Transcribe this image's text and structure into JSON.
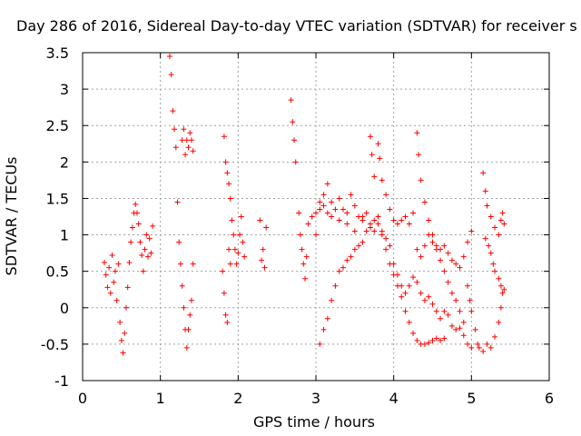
{
  "chart_data": {
    "type": "scatter",
    "title": "Day 286 of 2016, Sidereal Day-to-day VTEC variation (SDTVAR) for receiver s",
    "xlabel": "GPS time / hours",
    "ylabel": "SDTVAR / TECUs",
    "xlim": [
      0,
      6
    ],
    "ylim": [
      -1,
      3.5
    ],
    "xticks": [
      "0",
      "1",
      "2",
      "3",
      "4",
      "5",
      "6"
    ],
    "yticks": [
      "-1",
      "-0.5",
      "0",
      "0.5",
      "1",
      "1.5",
      "2",
      "2.5",
      "3",
      "3.5"
    ],
    "grid": true,
    "marker": "+",
    "color": "#ff0000",
    "series": [
      {
        "values": [
          [
            0.28,
            0.62
          ],
          [
            0.3,
            0.45
          ],
          [
            0.32,
            0.28
          ],
          [
            0.34,
            0.55
          ],
          [
            0.36,
            0.2
          ],
          [
            0.38,
            0.72
          ],
          [
            0.4,
            0.35
          ],
          [
            0.42,
            0.5
          ],
          [
            0.44,
            0.1
          ],
          [
            0.46,
            0.6
          ],
          [
            0.48,
            -0.2
          ],
          [
            0.5,
            -0.45
          ],
          [
            0.52,
            -0.62
          ],
          [
            0.54,
            -0.35
          ],
          [
            0.56,
            0.0
          ],
          [
            0.58,
            0.28
          ],
          [
            0.6,
            0.62
          ],
          [
            0.62,
            0.9
          ],
          [
            0.64,
            1.1
          ],
          [
            0.66,
            1.3
          ],
          [
            0.68,
            1.42
          ],
          [
            0.7,
            1.3
          ],
          [
            0.72,
            1.15
          ],
          [
            0.74,
            0.9
          ],
          [
            0.76,
            0.72
          ],
          [
            0.78,
            0.5
          ],
          [
            0.8,
            0.8
          ],
          [
            0.82,
            1.0
          ],
          [
            0.84,
            0.7
          ],
          [
            0.86,
            0.95
          ],
          [
            0.88,
            0.75
          ],
          [
            0.9,
            1.12
          ],
          [
            1.12,
            3.45
          ],
          [
            1.14,
            3.2
          ],
          [
            1.16,
            2.7
          ],
          [
            1.18,
            2.45
          ],
          [
            1.2,
            2.2
          ],
          [
            1.22,
            1.45
          ],
          [
            1.24,
            0.9
          ],
          [
            1.26,
            0.6
          ],
          [
            1.28,
            0.3
          ],
          [
            1.3,
            0.0
          ],
          [
            1.32,
            -0.3
          ],
          [
            1.34,
            -0.55
          ],
          [
            1.36,
            -0.3
          ],
          [
            1.38,
            -0.1
          ],
          [
            1.4,
            0.1
          ],
          [
            1.42,
            0.6
          ],
          [
            1.28,
            2.3
          ],
          [
            1.3,
            2.45
          ],
          [
            1.32,
            2.1
          ],
          [
            1.34,
            2.3
          ],
          [
            1.36,
            2.2
          ],
          [
            1.38,
            2.4
          ],
          [
            1.4,
            2.3
          ],
          [
            1.42,
            2.15
          ],
          [
            1.82,
            2.35
          ],
          [
            1.84,
            2.0
          ],
          [
            1.86,
            1.85
          ],
          [
            1.88,
            1.7
          ],
          [
            1.9,
            1.5
          ],
          [
            1.92,
            1.2
          ],
          [
            1.94,
            1.0
          ],
          [
            1.96,
            0.8
          ],
          [
            1.98,
            0.6
          ],
          [
            2.0,
            0.75
          ],
          [
            2.02,
            1.0
          ],
          [
            2.04,
            1.25
          ],
          [
            2.06,
            0.9
          ],
          [
            2.08,
            0.7
          ],
          [
            1.8,
            0.5
          ],
          [
            1.82,
            0.2
          ],
          [
            1.84,
            -0.1
          ],
          [
            1.86,
            -0.2
          ],
          [
            1.88,
            0.8
          ],
          [
            1.9,
            0.6
          ],
          [
            2.28,
            1.2
          ],
          [
            2.3,
            0.65
          ],
          [
            2.32,
            0.8
          ],
          [
            2.34,
            0.55
          ],
          [
            2.36,
            1.1
          ],
          [
            2.68,
            2.85
          ],
          [
            2.7,
            2.55
          ],
          [
            2.72,
            2.3
          ],
          [
            2.74,
            2.0
          ],
          [
            2.78,
            1.3
          ],
          [
            2.8,
            1.0
          ],
          [
            2.82,
            0.8
          ],
          [
            2.84,
            0.6
          ],
          [
            2.86,
            0.4
          ],
          [
            2.88,
            0.7
          ],
          [
            2.9,
            1.15
          ],
          [
            2.95,
            1.25
          ],
          [
            3.0,
            1.0
          ],
          [
            3.05,
            1.45
          ],
          [
            3.1,
            1.55
          ],
          [
            3.15,
            1.7
          ],
          [
            3.2,
            1.45
          ],
          [
            3.25,
            1.35
          ],
          [
            3.3,
            1.5
          ],
          [
            3.35,
            1.35
          ],
          [
            3.4,
            1.3
          ],
          [
            3.45,
            1.55
          ],
          [
            3.5,
            1.4
          ],
          [
            3.55,
            1.25
          ],
          [
            3.6,
            1.2
          ],
          [
            3.65,
            1.3
          ],
          [
            3.7,
            1.1
          ],
          [
            3.75,
            1.05
          ],
          [
            3.8,
            1.15
          ],
          [
            3.85,
            1.0
          ],
          [
            3.9,
            0.95
          ],
          [
            3.95,
            0.85
          ],
          [
            4.0,
            0.6
          ],
          [
            4.05,
            0.45
          ],
          [
            4.1,
            0.3
          ],
          [
            4.15,
            0.2
          ],
          [
            4.2,
            0.3
          ],
          [
            4.25,
            0.42
          ],
          [
            4.3,
            0.35
          ],
          [
            4.35,
            0.2
          ],
          [
            4.4,
            0.1
          ],
          [
            4.45,
            0.15
          ],
          [
            4.5,
            0.05
          ],
          [
            4.55,
            -0.05
          ],
          [
            4.6,
            -0.15
          ],
          [
            4.65,
            -0.05
          ],
          [
            4.7,
            -0.1
          ],
          [
            4.75,
            -0.25
          ],
          [
            4.8,
            -0.3
          ],
          [
            4.85,
            -0.28
          ],
          [
            4.9,
            -0.38
          ],
          [
            4.95,
            -0.5
          ],
          [
            5.0,
            -0.55
          ],
          [
            3.05,
            -0.5
          ],
          [
            3.1,
            -0.3
          ],
          [
            3.15,
            -0.15
          ],
          [
            3.2,
            0.1
          ],
          [
            3.25,
            0.3
          ],
          [
            3.3,
            0.5
          ],
          [
            3.35,
            0.55
          ],
          [
            3.4,
            0.65
          ],
          [
            3.45,
            0.7
          ],
          [
            3.5,
            0.8
          ],
          [
            3.55,
            0.85
          ],
          [
            3.6,
            0.9
          ],
          [
            3.65,
            1.05
          ],
          [
            3.7,
            1.15
          ],
          [
            3.75,
            1.2
          ],
          [
            3.8,
            1.25
          ],
          [
            3.85,
            1.05
          ],
          [
            3.9,
            0.8
          ],
          [
            3.95,
            0.6
          ],
          [
            4.0,
            0.45
          ],
          [
            4.05,
            0.3
          ],
          [
            4.1,
            0.15
          ],
          [
            4.15,
            -0.05
          ],
          [
            4.2,
            -0.2
          ],
          [
            4.25,
            -0.35
          ],
          [
            4.3,
            -0.45
          ],
          [
            4.35,
            -0.5
          ],
          [
            4.4,
            -0.5
          ],
          [
            4.45,
            -0.48
          ],
          [
            4.5,
            -0.45
          ],
          [
            4.55,
            -0.42
          ],
          [
            4.6,
            -0.45
          ],
          [
            4.65,
            -0.42
          ],
          [
            3.0,
            1.3
          ],
          [
            3.05,
            1.35
          ],
          [
            3.1,
            1.4
          ],
          [
            3.15,
            1.3
          ],
          [
            3.2,
            1.25
          ],
          [
            3.3,
            1.2
          ],
          [
            3.4,
            1.15
          ],
          [
            3.5,
            1.05
          ],
          [
            3.6,
            1.25
          ],
          [
            3.7,
            2.35
          ],
          [
            3.72,
            2.1
          ],
          [
            3.75,
            1.8
          ],
          [
            3.8,
            2.25
          ],
          [
            3.82,
            2.05
          ],
          [
            3.85,
            1.75
          ],
          [
            3.9,
            1.55
          ],
          [
            3.95,
            1.35
          ],
          [
            4.0,
            1.2
          ],
          [
            4.05,
            1.15
          ],
          [
            4.1,
            1.2
          ],
          [
            4.15,
            1.25
          ],
          [
            4.2,
            1.15
          ],
          [
            4.25,
            1.3
          ],
          [
            4.3,
            2.4
          ],
          [
            4.32,
            2.1
          ],
          [
            4.35,
            1.75
          ],
          [
            4.4,
            1.45
          ],
          [
            4.45,
            1.2
          ],
          [
            4.5,
            1.0
          ],
          [
            4.55,
            0.8
          ],
          [
            4.6,
            0.65
          ],
          [
            4.65,
            0.5
          ],
          [
            4.7,
            0.35
          ],
          [
            4.75,
            0.2
          ],
          [
            4.8,
            0.1
          ],
          [
            4.85,
            -0.05
          ],
          [
            4.9,
            -0.2
          ],
          [
            4.3,
            0.8
          ],
          [
            4.35,
            0.7
          ],
          [
            4.4,
            0.85
          ],
          [
            4.45,
            1.0
          ],
          [
            4.5,
            0.9
          ],
          [
            4.55,
            0.85
          ],
          [
            4.6,
            0.8
          ],
          [
            4.65,
            0.85
          ],
          [
            4.7,
            0.75
          ],
          [
            4.75,
            0.65
          ],
          [
            4.8,
            0.6
          ],
          [
            4.85,
            0.55
          ],
          [
            4.9,
            0.7
          ],
          [
            4.95,
            0.9
          ],
          [
            5.0,
            1.05
          ],
          [
            4.95,
            0.3
          ],
          [
            4.98,
            0.1
          ],
          [
            5.0,
            -0.05
          ],
          [
            5.05,
            -0.3
          ],
          [
            5.08,
            -0.5
          ],
          [
            5.1,
            -0.55
          ],
          [
            5.15,
            -0.6
          ],
          [
            5.2,
            -0.5
          ],
          [
            5.25,
            -0.55
          ],
          [
            5.3,
            -0.4
          ],
          [
            5.35,
            -0.2
          ],
          [
            5.38,
            0.0
          ],
          [
            5.4,
            0.2
          ],
          [
            5.15,
            1.85
          ],
          [
            5.18,
            1.6
          ],
          [
            5.2,
            1.4
          ],
          [
            5.25,
            1.25
          ],
          [
            5.3,
            1.1
          ],
          [
            5.35,
            1.0
          ],
          [
            5.38,
            1.2
          ],
          [
            5.4,
            1.3
          ],
          [
            5.42,
            1.15
          ],
          [
            5.18,
            0.95
          ],
          [
            5.22,
            0.85
          ],
          [
            5.25,
            0.75
          ],
          [
            5.28,
            0.6
          ],
          [
            5.3,
            0.5
          ],
          [
            5.35,
            0.4
          ],
          [
            5.38,
            0.3
          ],
          [
            5.42,
            0.25
          ]
        ]
      }
    ]
  }
}
